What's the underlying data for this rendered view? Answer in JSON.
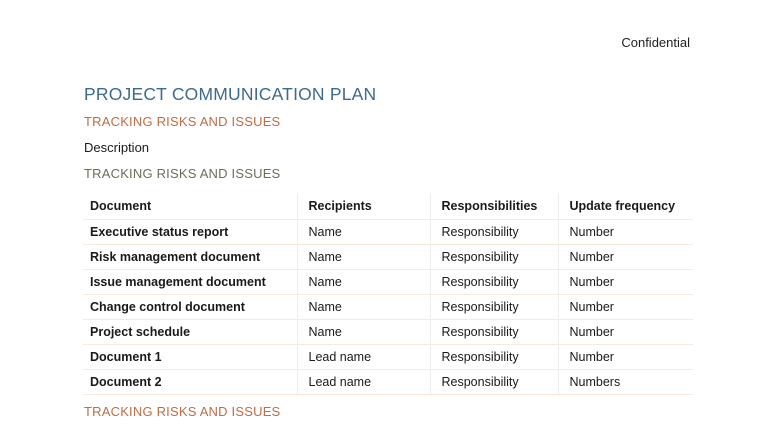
{
  "page": {
    "confidential_label": "Confidential",
    "title": "PROJECT COMMUNICATION PLAN",
    "section_heading": "TRACKING RISKS AND ISSUES",
    "description_label": "Description",
    "subsection_heading": "TRACKING RISKS AND ISSUES",
    "footer_heading": "TRACKING RISKS AND ISSUES"
  },
  "colors": {
    "title_blue": "#3e6a8e",
    "heading_orange": "#c06c44",
    "heading_olive": "#6e6e55",
    "row_divider": "#f8e9dc",
    "column_divider": "#ececec"
  },
  "table": {
    "headers": [
      "Document",
      "Recipients",
      "Responsibilities",
      "Update frequency"
    ],
    "rows": [
      {
        "document": "Executive status report",
        "recipients": "Name",
        "responsibilities": "Responsibility",
        "update_frequency": "Number"
      },
      {
        "document": "Risk management document",
        "recipients": "Name",
        "responsibilities": "Responsibility",
        "update_frequency": "Number"
      },
      {
        "document": "Issue management document",
        "recipients": "Name",
        "responsibilities": "Responsibility",
        "update_frequency": "Number"
      },
      {
        "document": "Change control document",
        "recipients": "Name",
        "responsibilities": "Responsibility",
        "update_frequency": "Number"
      },
      {
        "document": "Project schedule",
        "recipients": "Name",
        "responsibilities": "Responsibility",
        "update_frequency": "Number"
      },
      {
        "document": "Document 1",
        "recipients": "Lead name",
        "responsibilities": "Responsibility",
        "update_frequency": "Number"
      },
      {
        "document": "Document 2",
        "recipients": "Lead name",
        "responsibilities": "Responsibility",
        "update_frequency": "Numbers"
      }
    ]
  }
}
